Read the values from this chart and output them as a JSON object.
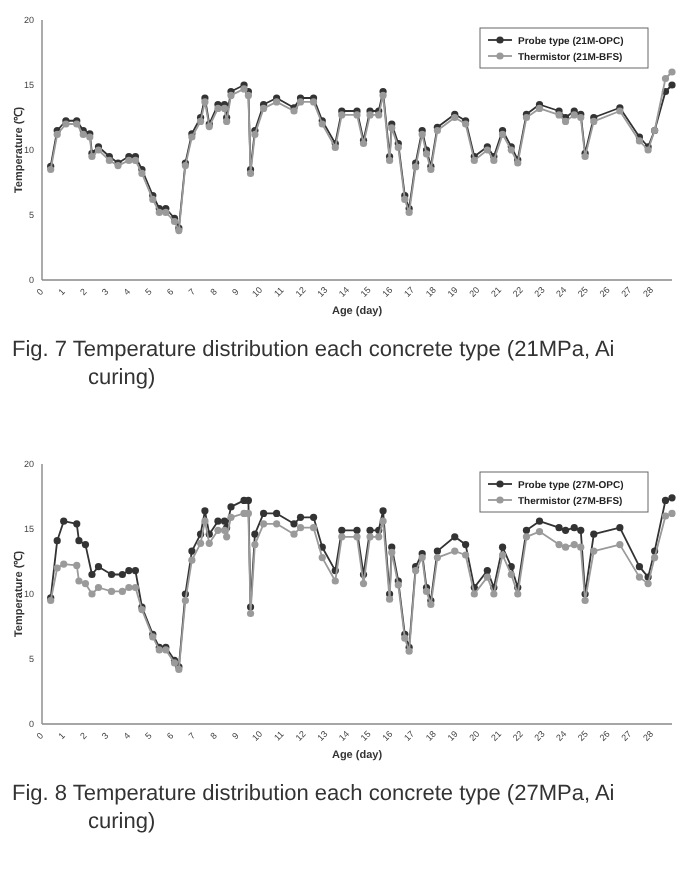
{
  "chart_data": [
    {
      "type": "line",
      "xlabel": "Age (day)",
      "ylabel": "Temperature (℃)",
      "xlim": [
        0,
        29
      ],
      "xticks": [
        0,
        1,
        2,
        3,
        4,
        5,
        6,
        7,
        8,
        9,
        10,
        11,
        12,
        13,
        14,
        15,
        16,
        17,
        18,
        19,
        20,
        21,
        22,
        23,
        24,
        25,
        26,
        27,
        28
      ],
      "ylim": [
        0,
        20
      ],
      "yticks": [
        0,
        5,
        10,
        15,
        20
      ],
      "grid": false,
      "legend": "top right",
      "marker": "circle",
      "line_style": "solid",
      "annotations": [
        "Fig. 7 Temperature distribution each concrete type (21MPa, Ai curing)"
      ],
      "x": [
        0.4,
        0.7,
        1.1,
        1.6,
        1.9,
        2.2,
        2.3,
        2.6,
        3.1,
        3.5,
        4,
        4.3,
        4.6,
        5.1,
        5.4,
        5.7,
        6.1,
        6.3,
        6.6,
        6.9,
        7.3,
        7.5,
        7.7,
        8.1,
        8.4,
        8.5,
        8.7,
        9.3,
        9.5,
        9.6,
        9.8,
        10.2,
        10.8,
        11.6,
        11.9,
        12.5,
        12.9,
        13.5,
        13.8,
        14.5,
        14.8,
        15.1,
        15.5,
        15.7,
        16,
        16.1,
        16.4,
        16.7,
        16.9,
        17.2,
        17.5,
        17.7,
        17.9,
        18.2,
        19,
        19.5,
        19.9,
        20.5,
        20.8,
        21.2,
        21.6,
        21.9,
        22.3,
        22.9,
        23.8,
        24.1,
        24.5,
        24.8,
        25,
        25.4,
        26.6,
        27.5,
        27.9,
        28.2,
        28.7,
        29
      ],
      "series": [
        {
          "name": "Probe type (21M-OPC)",
          "color": "#333333",
          "values": [
            8.75,
            11.5,
            12.25,
            12.25,
            11.5,
            11.25,
            9.75,
            10.25,
            9.5,
            9,
            9.5,
            9.5,
            8.5,
            6.5,
            5.5,
            5.5,
            4.75,
            4,
            9,
            11.25,
            12.5,
            14,
            12,
            13.5,
            13.5,
            12.5,
            14.5,
            15,
            14.5,
            8.5,
            11.5,
            13.5,
            14,
            13.25,
            14,
            14,
            12.25,
            10.5,
            13,
            13,
            10.75,
            13,
            13,
            14.5,
            9.5,
            12,
            10.5,
            6.5,
            5.5,
            9,
            11.5,
            10,
            8.75,
            11.75,
            12.75,
            12.25,
            9.5,
            10.25,
            9.5,
            11.5,
            10.25,
            9.25,
            12.75,
            13.5,
            13,
            12.5,
            13,
            12.75,
            9.75,
            12.5,
            13.25,
            11,
            10.25,
            11.5,
            14.5,
            15
          ]
        },
        {
          "name": "Thermistor (21M-BFS)",
          "color": "#9a9a9a",
          "values": [
            8.5,
            11.2,
            12,
            12,
            11.2,
            11,
            9.5,
            10,
            9.2,
            8.8,
            9.2,
            9.2,
            8.2,
            6.2,
            5.2,
            5.2,
            4.5,
            3.8,
            8.8,
            11,
            12.2,
            13.7,
            11.8,
            13.2,
            13.2,
            12.2,
            14.2,
            14.7,
            14.2,
            8.2,
            11.2,
            13.2,
            13.7,
            13,
            13.7,
            13.7,
            12,
            10.2,
            12.7,
            12.7,
            10.5,
            12.7,
            12.7,
            14.2,
            9.2,
            11.7,
            10.2,
            6.2,
            5.2,
            8.7,
            11.2,
            9.7,
            8.5,
            11.5,
            12.5,
            12,
            9.2,
            10,
            9.2,
            11.2,
            10,
            9,
            12.5,
            13.2,
            12.7,
            12.2,
            12.7,
            12.5,
            9.5,
            12.2,
            13,
            10.7,
            10,
            11.5,
            15.5,
            16
          ]
        }
      ]
    },
    {
      "type": "line",
      "xlabel": "Age (day)",
      "ylabel": "Temperature (℃)",
      "xlim": [
        0,
        29
      ],
      "xticks": [
        0,
        1,
        2,
        3,
        4,
        5,
        6,
        7,
        8,
        9,
        10,
        11,
        12,
        13,
        14,
        15,
        16,
        17,
        18,
        19,
        20,
        21,
        22,
        23,
        24,
        25,
        26,
        27,
        28
      ],
      "ylim": [
        0,
        20
      ],
      "yticks": [
        0,
        5,
        10,
        15,
        20
      ],
      "grid": false,
      "legend": "top right",
      "marker": "circle",
      "line_style": "solid",
      "annotations": [
        "Fig. 8 Temperature distribution each concrete type (27MPa, Ai curing)"
      ],
      "x": [
        0.4,
        0.7,
        1,
        1.6,
        1.7,
        2,
        2.3,
        2.6,
        3.2,
        3.7,
        4,
        4.3,
        4.6,
        5.1,
        5.4,
        5.7,
        6.1,
        6.3,
        6.6,
        6.9,
        7.3,
        7.5,
        7.7,
        8.1,
        8.4,
        8.5,
        8.7,
        9.3,
        9.5,
        9.6,
        9.8,
        10.2,
        10.8,
        11.6,
        11.9,
        12.5,
        12.9,
        13.5,
        13.8,
        14.5,
        14.8,
        15.1,
        15.5,
        15.7,
        16,
        16.1,
        16.4,
        16.7,
        16.9,
        17.2,
        17.5,
        17.7,
        17.9,
        18.2,
        19,
        19.5,
        19.9,
        20.5,
        20.8,
        21.2,
        21.6,
        21.9,
        22.3,
        22.9,
        23.8,
        24.1,
        24.5,
        24.8,
        25,
        25.4,
        26.6,
        27.5,
        27.9,
        28.2,
        28.7,
        29
      ],
      "series": [
        {
          "name": "Probe type (27M-OPC)",
          "color": "#333333",
          "values": [
            9.7,
            14.1,
            15.6,
            15.4,
            14.1,
            13.8,
            11.5,
            12.1,
            11.5,
            11.5,
            11.8,
            11.8,
            9,
            6.9,
            5.9,
            5.9,
            4.9,
            4.4,
            10,
            13.3,
            14.6,
            16.4,
            14.6,
            15.6,
            15.6,
            15.1,
            16.7,
            17.2,
            17.2,
            9,
            14.6,
            16.2,
            16.2,
            15.4,
            15.9,
            15.9,
            13.6,
            11.8,
            14.9,
            14.9,
            11.5,
            14.9,
            14.9,
            16.4,
            10,
            13.6,
            11,
            6.9,
            5.9,
            12.1,
            13.1,
            10.5,
            9.5,
            13.3,
            14.4,
            13.8,
            10.5,
            11.8,
            10.5,
            13.6,
            12.1,
            10.5,
            14.9,
            15.6,
            15.1,
            14.9,
            15.1,
            14.9,
            10,
            14.6,
            15.1,
            12.1,
            11.3,
            13.3,
            17.2,
            17.4
          ]
        },
        {
          "name": "Thermistor (27M-BFS)",
          "color": "#9a9a9a",
          "values": [
            9.5,
            12,
            12.3,
            12.2,
            11,
            10.8,
            10,
            10.5,
            10.2,
            10.2,
            10.5,
            10.5,
            8.8,
            6.7,
            5.7,
            5.7,
            4.7,
            4.2,
            9.5,
            12.6,
            13.9,
            15.6,
            13.9,
            14.9,
            14.9,
            14.4,
            15.9,
            16.2,
            16.2,
            8.5,
            13.8,
            15.4,
            15.4,
            14.6,
            15.1,
            15.1,
            12.8,
            11,
            14.4,
            14.4,
            10.8,
            14.4,
            14.4,
            15.6,
            9.6,
            13.2,
            10.7,
            6.6,
            5.6,
            11.8,
            12.8,
            10.2,
            9.2,
            12.8,
            13.3,
            13,
            10,
            11.3,
            10,
            13,
            11.5,
            10,
            14.4,
            14.8,
            13.8,
            13.6,
            13.8,
            13.6,
            9.5,
            13.3,
            13.8,
            11.3,
            10.8,
            12.8,
            16,
            16.2
          ]
        }
      ]
    }
  ]
}
